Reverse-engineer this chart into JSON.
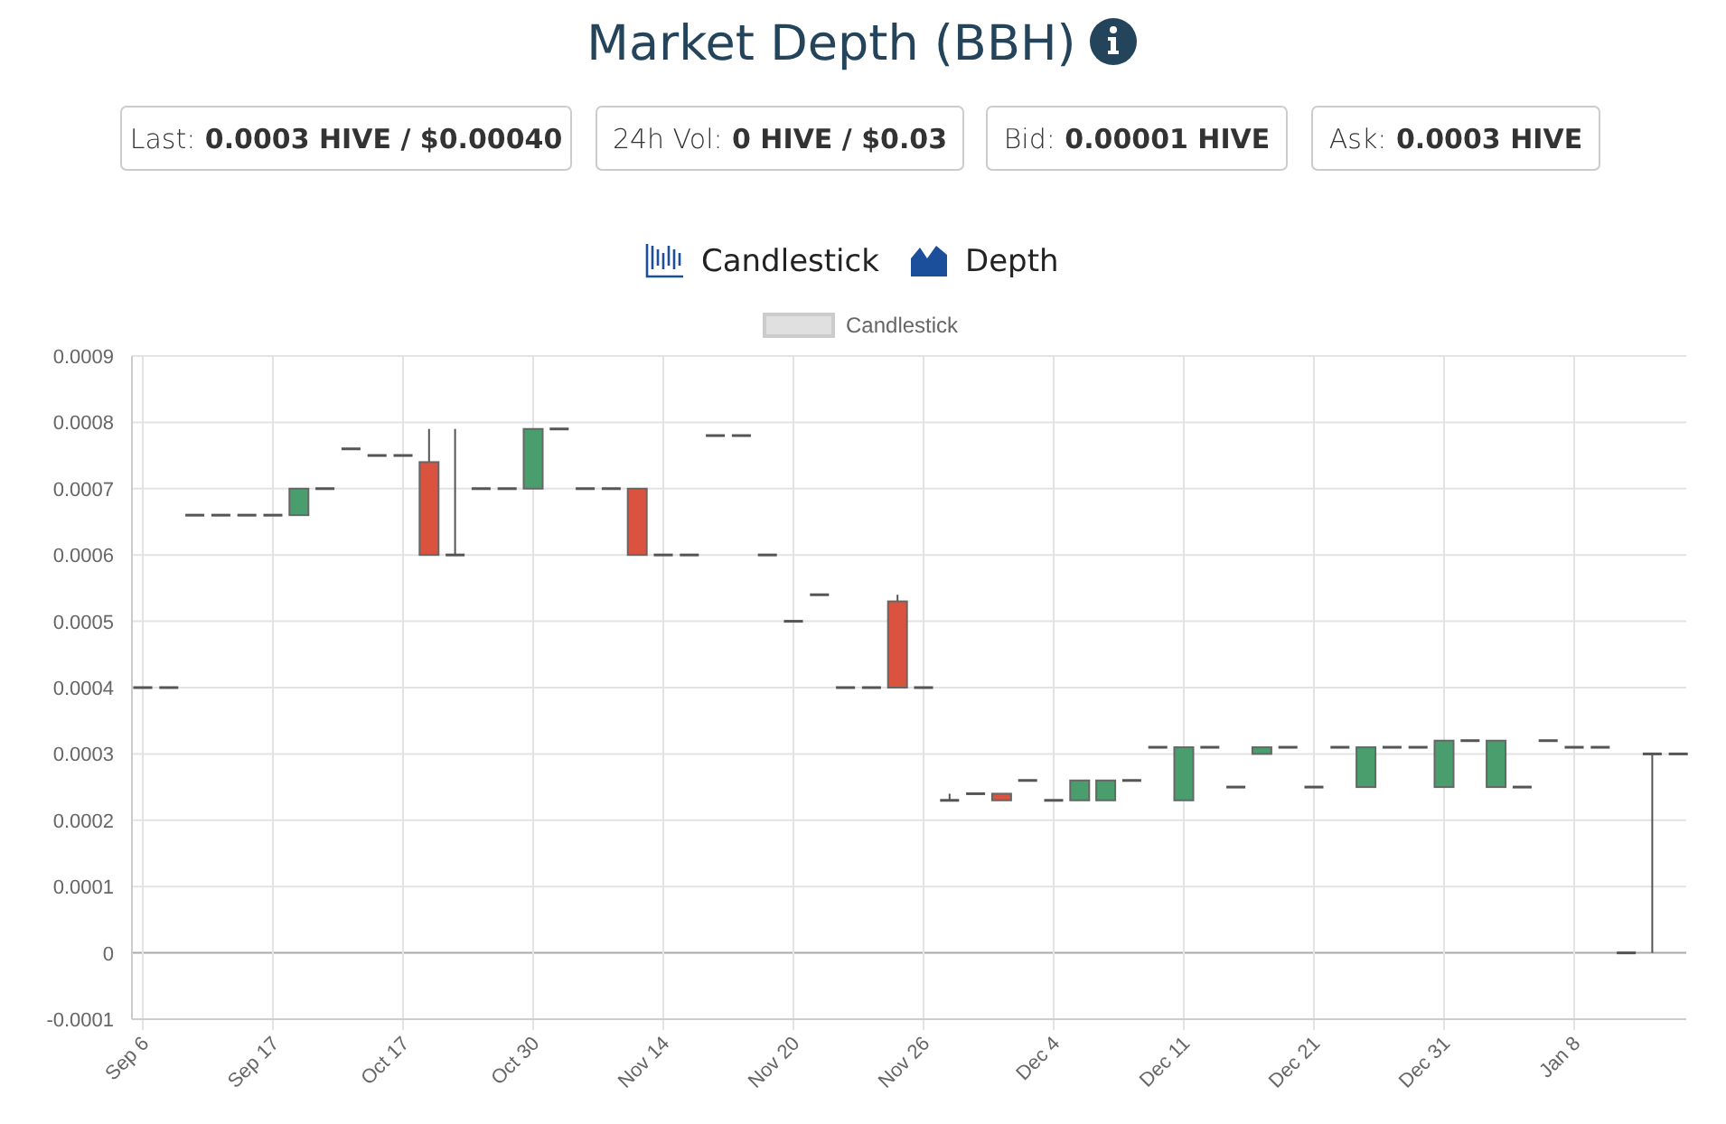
{
  "chart_data": {
    "type": "candlestick",
    "title": "Market Depth (BBH)",
    "annotations": [
      "Last: 0.0003 HIVE / $0.00040",
      "24h Vol: 0 HIVE / $0.03",
      "Bid: 0.00001 HIVE",
      "Ask: 0.0003 HIVE",
      "Candlestick",
      "Depth"
    ],
    "categories": [
      "Sep 6",
      null,
      null,
      null,
      null,
      "Sep 17",
      null,
      null,
      null,
      null,
      "Oct 17",
      null,
      null,
      null,
      null,
      "Oct 30",
      null,
      null,
      null,
      null,
      "Nov 14",
      null,
      null,
      null,
      null,
      "Nov 20",
      null,
      null,
      null,
      null,
      "Nov 26",
      null,
      null,
      null,
      null,
      "Dec 4",
      null,
      null,
      null,
      null,
      "Dec 11",
      null,
      null,
      null,
      null,
      "Dec 21",
      null,
      null,
      null,
      null,
      "Dec 31",
      null,
      null,
      null,
      null,
      "Jan 8",
      null,
      null,
      null,
      null
    ],
    "series": [
      {
        "name": "Candlestick",
        "color": "#e0e0e0",
        "ohlc": [
          [
            0.0004,
            0.0004,
            0.0004,
            0.0004
          ],
          [
            0.0004,
            0.0004,
            0.0004,
            0.0004
          ],
          [
            0.00066,
            0.00066,
            0.00066,
            0.00066
          ],
          [
            0.00066,
            0.00066,
            0.00066,
            0.00066
          ],
          [
            0.00066,
            0.00066,
            0.00066,
            0.00066
          ],
          [
            0.00066,
            0.00066,
            0.00066,
            0.00066
          ],
          [
            0.00066,
            0.0007,
            0.00066,
            0.0007
          ],
          [
            0.0007,
            0.0007,
            0.0007,
            0.0007
          ],
          [
            0.00076,
            0.00076,
            0.00076,
            0.00076
          ],
          [
            0.00075,
            0.00075,
            0.00075,
            0.00075
          ],
          [
            0.00075,
            0.00075,
            0.00075,
            0.00075
          ],
          [
            0.00074,
            0.00079,
            0.0006,
            0.0006
          ],
          [
            0.0006,
            0.00079,
            0.0006,
            0.0006
          ],
          [
            0.0007,
            0.0007,
            0.0007,
            0.0007
          ],
          [
            0.0007,
            0.0007,
            0.0007,
            0.0007
          ],
          [
            0.0007,
            0.00079,
            0.0007,
            0.00079
          ],
          [
            0.00079,
            0.00079,
            0.00079,
            0.00079
          ],
          [
            0.0007,
            0.0007,
            0.0007,
            0.0007
          ],
          [
            0.0007,
            0.0007,
            0.0007,
            0.0007
          ],
          [
            0.0007,
            0.0007,
            0.0006,
            0.0006
          ],
          [
            0.0006,
            0.0006,
            0.0006,
            0.0006
          ],
          [
            0.0006,
            0.0006,
            0.0006,
            0.0006
          ],
          [
            0.00078,
            0.00078,
            0.00078,
            0.00078
          ],
          [
            0.00078,
            0.00078,
            0.00078,
            0.00078
          ],
          [
            0.0006,
            0.0006,
            0.0006,
            0.0006
          ],
          [
            0.0005,
            0.0005,
            0.0005,
            0.0005
          ],
          [
            0.00054,
            0.00054,
            0.00054,
            0.00054
          ],
          [
            0.0004,
            0.0004,
            0.0004,
            0.0004
          ],
          [
            0.0004,
            0.0004,
            0.0004,
            0.0004
          ],
          [
            0.00053,
            0.00054,
            0.0004,
            0.0004
          ],
          [
            0.0004,
            0.0004,
            0.0004,
            0.0004
          ],
          [
            0.00023,
            0.00024,
            0.00023,
            0.00023
          ],
          [
            0.00024,
            0.00024,
            0.00024,
            0.00024
          ],
          [
            0.00024,
            0.00024,
            0.00023,
            0.00023
          ],
          [
            0.00026,
            0.00026,
            0.00026,
            0.00026
          ],
          [
            0.00023,
            0.00023,
            0.00023,
            0.00023
          ],
          [
            0.00023,
            0.00026,
            0.00023,
            0.00026
          ],
          [
            0.00023,
            0.00026,
            0.00023,
            0.00026
          ],
          [
            0.00026,
            0.00026,
            0.00026,
            0.00026
          ],
          [
            0.00031,
            0.00031,
            0.00031,
            0.00031
          ],
          [
            0.00023,
            0.00031,
            0.00023,
            0.00031
          ],
          [
            0.00031,
            0.00031,
            0.00031,
            0.00031
          ],
          [
            0.00025,
            0.00025,
            0.00025,
            0.00025
          ],
          [
            0.0003,
            0.00031,
            0.0003,
            0.00031
          ],
          [
            0.00031,
            0.00031,
            0.00031,
            0.00031
          ],
          [
            0.00025,
            0.00025,
            0.00025,
            0.00025
          ],
          [
            0.00031,
            0.00031,
            0.00031,
            0.00031
          ],
          [
            0.00025,
            0.00031,
            0.00025,
            0.00031
          ],
          [
            0.00031,
            0.00031,
            0.00031,
            0.00031
          ],
          [
            0.00031,
            0.00031,
            0.00031,
            0.00031
          ],
          [
            0.00025,
            0.00032,
            0.00025,
            0.00032
          ],
          [
            0.00032,
            0.00032,
            0.00032,
            0.00032
          ],
          [
            0.00025,
            0.00032,
            0.00025,
            0.00032
          ],
          [
            0.00025,
            0.00025,
            0.00025,
            0.00025
          ],
          [
            0.00032,
            0.00032,
            0.00032,
            0.00032
          ],
          [
            0.00031,
            0.00031,
            0.00031,
            0.00031
          ],
          [
            0.00031,
            0.00031,
            0.00031,
            0.00031
          ],
          [
            0,
            0,
            0,
            0
          ],
          [
            0.0003,
            0.0003,
            0,
            0.0003
          ],
          [
            0.0003,
            0.0003,
            0.0003,
            0.0003
          ]
        ],
        "colors": [
          "#555555",
          "#555555",
          "#555555",
          "#555555",
          "#555555",
          "#555555",
          "#4a9e6e",
          "#555555",
          "#555555",
          "#555555",
          "#555555",
          "#d9533f",
          "#555555",
          "#555555",
          "#555555",
          "#4a9e6e",
          "#555555",
          "#555555",
          "#555555",
          "#d9533f",
          "#555555",
          "#555555",
          "#555555",
          "#555555",
          "#555555",
          "#555555",
          "#555555",
          "#555555",
          "#555555",
          "#d9533f",
          "#555555",
          "#555555",
          "#555555",
          "#d9533f",
          "#555555",
          "#555555",
          "#4a9e6e",
          "#4a9e6e",
          "#555555",
          "#555555",
          "#4a9e6e",
          "#555555",
          "#555555",
          "#4a9e6e",
          "#555555",
          "#555555",
          "#555555",
          "#4a9e6e",
          "#555555",
          "#555555",
          "#4a9e6e",
          "#555555",
          "#4a9e6e",
          "#555555",
          "#555555",
          "#555555",
          "#555555",
          "#555555",
          "#555555",
          "#555555"
        ]
      }
    ],
    "ylim": [
      -0.0001,
      0.0009
    ],
    "yticks": [
      -0.0001,
      0,
      0.0001,
      0.0002,
      0.0003,
      0.0004,
      0.0005,
      0.0006,
      0.0007,
      0.0008,
      0.0009
    ],
    "grid": true,
    "legend": "top"
  }
}
